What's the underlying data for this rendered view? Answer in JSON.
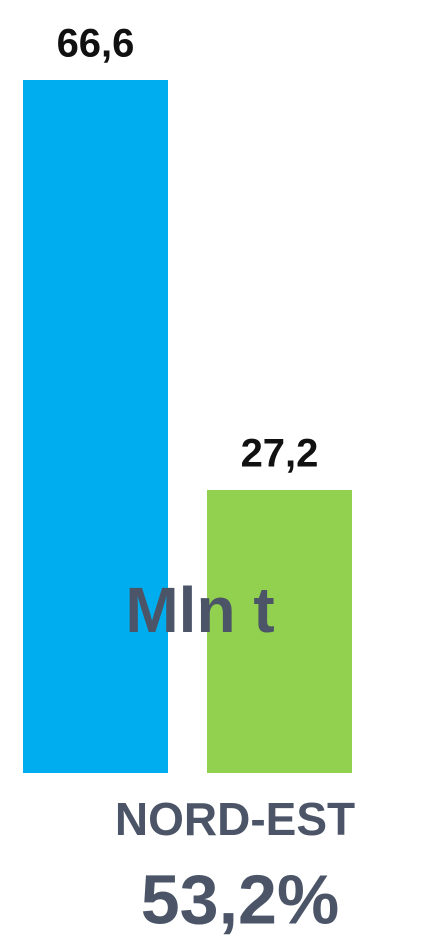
{
  "chart_data": {
    "type": "bar",
    "values": [
      66.6,
      27.2
    ],
    "value_labels": [
      "66,6",
      "27,2"
    ],
    "colors": [
      "#00aeef",
      "#92d050"
    ],
    "y_label": "Mln t",
    "subtitle": "NORD-EST",
    "annotation": "53,2%"
  }
}
